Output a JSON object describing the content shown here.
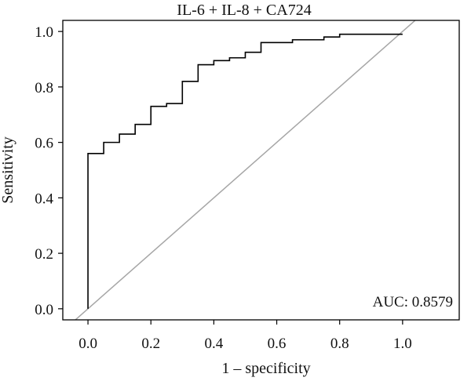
{
  "chart_data": {
    "type": "line",
    "title": "IL-6 + IL-8 + CA724",
    "xlabel": "1 – specificity",
    "ylabel": "Sensitivity",
    "xlim": [
      -0.08,
      1.18
    ],
    "ylim": [
      -0.04,
      1.04
    ],
    "x_ticks": [
      0.0,
      0.2,
      0.4,
      0.6,
      0.8,
      1.0
    ],
    "x_tick_labels": [
      "0.0",
      "0.2",
      "0.4",
      "0.6",
      "0.8",
      "1.0"
    ],
    "y_ticks": [
      0.0,
      0.2,
      0.4,
      0.6,
      0.8,
      1.0
    ],
    "y_tick_labels": [
      "0.0",
      "0.2",
      "0.4",
      "0.6",
      "0.8",
      "1.0"
    ],
    "grid": false,
    "series": [
      {
        "style": "step",
        "color": "#000000",
        "x": [
          0.0,
          0.0,
          0.05,
          0.05,
          0.1,
          0.1,
          0.15,
          0.15,
          0.2,
          0.2,
          0.25,
          0.25,
          0.3,
          0.3,
          0.35,
          0.35,
          0.4,
          0.4,
          0.45,
          0.45,
          0.5,
          0.5,
          0.55,
          0.55,
          0.65,
          0.65,
          0.75,
          0.75,
          0.8,
          0.8,
          1.0
        ],
        "y": [
          0.0,
          0.56,
          0.56,
          0.6,
          0.6,
          0.63,
          0.63,
          0.665,
          0.665,
          0.73,
          0.73,
          0.74,
          0.74,
          0.82,
          0.82,
          0.88,
          0.88,
          0.895,
          0.895,
          0.905,
          0.905,
          0.925,
          0.925,
          0.96,
          0.96,
          0.97,
          0.97,
          0.98,
          0.98,
          0.99,
          0.99
        ]
      },
      {
        "style": "reference",
        "color": "#a6a6a6",
        "x": [
          -0.08,
          1.18
        ],
        "y": [
          -0.08,
          1.18
        ]
      }
    ],
    "annotations": [
      {
        "text": "AUC: 0.8579",
        "position": "bottom-right"
      }
    ]
  }
}
